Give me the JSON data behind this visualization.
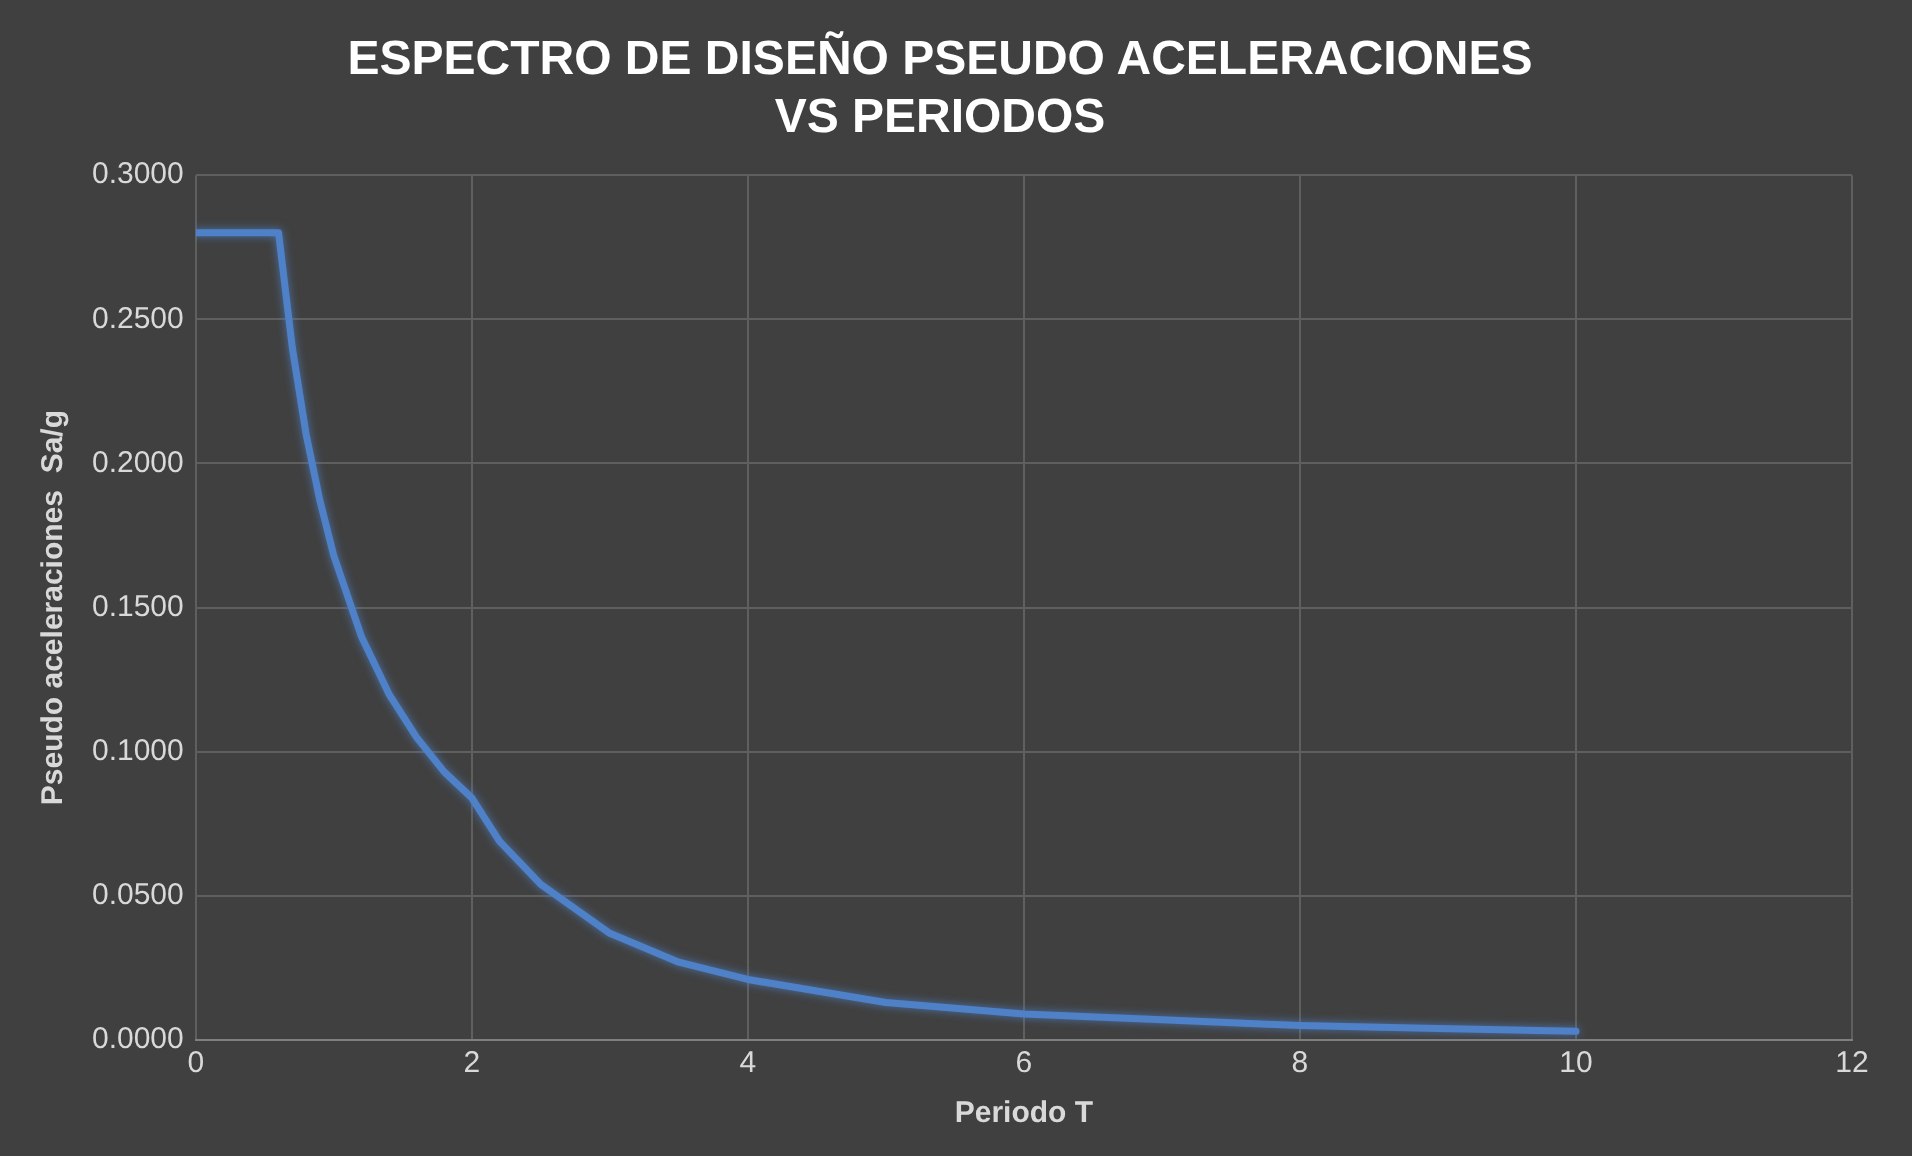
{
  "chart_data": {
    "type": "line",
    "title": "ESPECTRO DE DISEÑO PSEUDO ACELERACIONES VS PERIODOS",
    "xlabel": "Periodo T",
    "ylabel": "Pseudo aceleraciones  Sa/g",
    "x": [
      0,
      0.6,
      0.7,
      0.8,
      0.9,
      1.0,
      1.2,
      1.4,
      1.6,
      1.8,
      2.0,
      2.2,
      2.5,
      3,
      3.5,
      4,
      4.5,
      5,
      6,
      7,
      8,
      9,
      10
    ],
    "series": [
      {
        "color": "#4f81c8",
        "values": [
          0.28,
          0.28,
          0.24,
          0.21,
          0.187,
          0.168,
          0.14,
          0.12,
          0.105,
          0.093,
          0.084,
          0.069,
          0.054,
          0.037,
          0.027,
          0.021,
          0.017,
          0.013,
          0.009,
          0.007,
          0.005,
          0.004,
          0.003
        ]
      }
    ],
    "xlim": [
      0,
      12
    ],
    "xticks": [
      0,
      2,
      4,
      6,
      8,
      10,
      12
    ],
    "ylim": [
      0,
      0.3
    ],
    "yticks": [
      {
        "value": 0,
        "label": "0.0000"
      },
      {
        "value": 0.05,
        "label": "0.0500"
      },
      {
        "value": 0.1,
        "label": "0.1000"
      },
      {
        "value": 0.15,
        "label": "0.1500"
      },
      {
        "value": 0.2,
        "label": "0.2000"
      },
      {
        "value": 0.25,
        "label": "0.2500"
      },
      {
        "value": 0.3,
        "label": "0.3000"
      }
    ],
    "grid": true,
    "legend": false,
    "marker": "none",
    "line_style": "solid"
  }
}
